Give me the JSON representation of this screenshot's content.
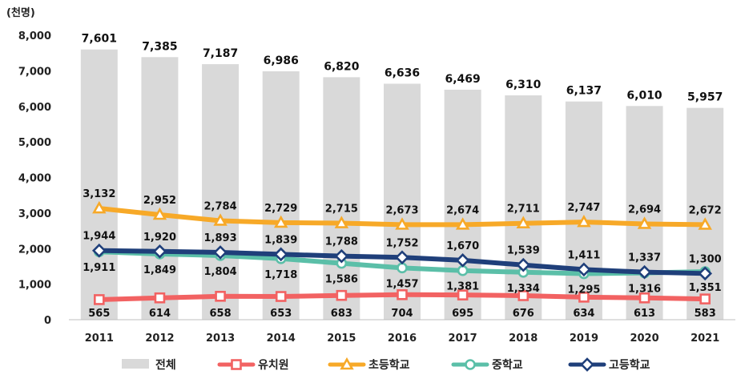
{
  "chart_data": {
    "type": "bar+line",
    "unit_label": "(천명)",
    "categories": [
      "2011",
      "2012",
      "2013",
      "2014",
      "2015",
      "2016",
      "2017",
      "2018",
      "2019",
      "2020",
      "2021"
    ],
    "yticks": [
      "0",
      "1,000",
      "2,000",
      "3,000",
      "4,000",
      "5,000",
      "6,000",
      "7,000",
      "8,000"
    ],
    "ylim": [
      0,
      8000
    ],
    "grid": false,
    "legend_position": "bottom",
    "bar_series": {
      "name": "전체",
      "color": "#d9d9d9",
      "values": [
        7601,
        7385,
        7187,
        6986,
        6820,
        6636,
        6469,
        6310,
        6137,
        6010,
        5957
      ],
      "labels": [
        "7,601",
        "7,385",
        "7,187",
        "6,986",
        "6,820",
        "6,636",
        "6,469",
        "6,310",
        "6,137",
        "6,010",
        "5,957"
      ]
    },
    "line_series": [
      {
        "name": "유치원",
        "color": "#f26262",
        "marker": "square",
        "values": [
          565,
          614,
          658,
          653,
          683,
          704,
          695,
          676,
          634,
          613,
          583
        ],
        "labels": [
          "565",
          "614",
          "658",
          "653",
          "683",
          "704",
          "695",
          "676",
          "634",
          "613",
          "583"
        ]
      },
      {
        "name": "초등학교",
        "color": "#f7a928",
        "marker": "triangle",
        "values": [
          3132,
          2952,
          2784,
          2729,
          2715,
          2673,
          2674,
          2711,
          2747,
          2694,
          2672
        ],
        "labels": [
          "3,132",
          "2,952",
          "2,784",
          "2,729",
          "2,715",
          "2,673",
          "2,674",
          "2,711",
          "2,747",
          "2,694",
          "2,672"
        ]
      },
      {
        "name": "중학교",
        "color": "#5bbfa8",
        "marker": "circle",
        "values": [
          1911,
          1849,
          1804,
          1718,
          1586,
          1457,
          1381,
          1334,
          1295,
          1316,
          1351
        ],
        "labels": [
          "1,911",
          "1,849",
          "1,804",
          "1,718",
          "1,586",
          "1,457",
          "1,381",
          "1,334",
          "1,295",
          "1,316",
          "1,351"
        ]
      },
      {
        "name": "고등학교",
        "color": "#1f3f7a",
        "marker": "diamond",
        "values": [
          1944,
          1920,
          1893,
          1839,
          1788,
          1752,
          1670,
          1539,
          1411,
          1337,
          1300
        ],
        "labels": [
          "1,944",
          "1,920",
          "1,893",
          "1,839",
          "1,788",
          "1,752",
          "1,670",
          "1,539",
          "1,411",
          "1,337",
          "1,300"
        ]
      }
    ]
  }
}
